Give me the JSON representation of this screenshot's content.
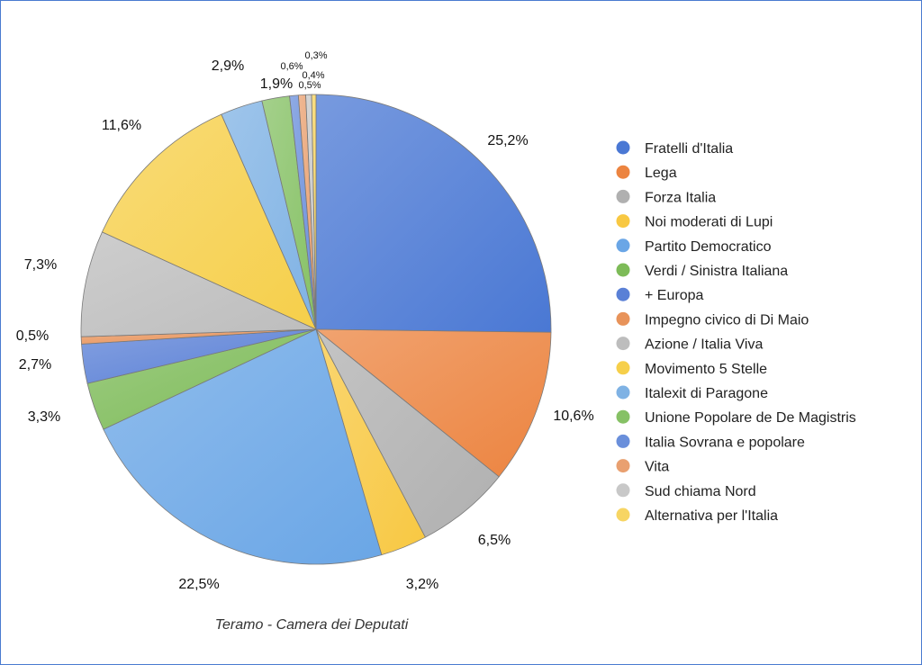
{
  "chart_data": {
    "type": "pie",
    "title": "Teramo - Camera dei Deputati",
    "legend_position": "right",
    "categories": [
      "Fratelli d'Italia",
      "Lega",
      "Forza Italia",
      "Noi moderati di Lupi",
      "Partito Democratico",
      "Verdi / Sinistra Italiana",
      "+ Europa",
      "Impegno civico di Di Maio",
      "Azione / Italia Viva",
      "Movimento 5 Stelle",
      "Italexit di Paragone",
      "Unione Popolare de De Magistris",
      "Italia Sovrana e popolare",
      "Vita",
      "Sud chiama Nord",
      "Alternativa per l'Italia"
    ],
    "values": [
      25.2,
      10.6,
      6.5,
      3.2,
      22.5,
      3.3,
      2.7,
      0.5,
      7.3,
      11.6,
      2.9,
      1.9,
      0.6,
      0.5,
      0.4,
      0.3
    ],
    "labels": [
      "25,2%",
      "10,6%",
      "6,5%",
      "3,2%",
      "22,5%",
      "3,3%",
      "2,7%",
      "0,5%",
      "7,3%",
      "11,6%",
      "2,9%",
      "1,9%",
      "0,6%",
      "0,5%",
      "0,4%",
      "0,3%"
    ],
    "colors": [
      "#4a78d4",
      "#ec8440",
      "#b0b0b0",
      "#f8c842",
      "#6aa6e6",
      "#7dbb58",
      "#5a80d6",
      "#e8935a",
      "#bdbdbd",
      "#f6cf4a",
      "#7fb2e4",
      "#86c165",
      "#6a8fdb",
      "#e9a070",
      "#c8c8c8",
      "#f7d563"
    ]
  }
}
